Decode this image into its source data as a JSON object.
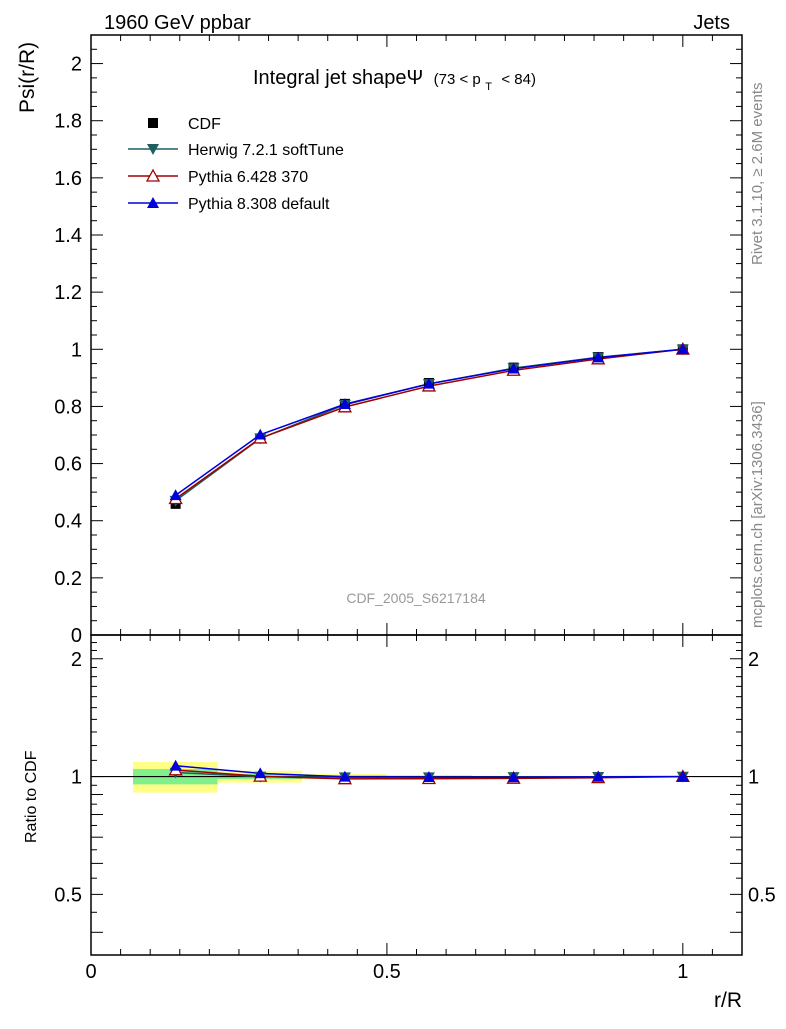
{
  "header": {
    "left": "1960 GeV ppbar",
    "right": "Jets"
  },
  "side_labels": {
    "rivet": "Rivet 3.1.10, ≥ 2.6M events",
    "mcplots": "mcplots.cern.ch [arXiv:1306.3436]"
  },
  "chart_data": {
    "type": "line",
    "title": "Integral jet shapeΨ",
    "title_suffix": "(73 < p",
    "title_sub": "T",
    "title_suffix2": "< 84)",
    "watermark": "CDF_2005_S6217184",
    "xlabel": "r/R",
    "ylabel": "Psi(r/R)",
    "ratio_ylabel": "Ratio to CDF",
    "xlim": [
      0,
      1.1
    ],
    "ylim": [
      0,
      2.1
    ],
    "ratio_ylim": [
      0.35,
      2.3
    ],
    "x_ticks": [
      {
        "v": 0,
        "label": "0"
      },
      {
        "v": 0.5,
        "label": "0.5"
      },
      {
        "v": 1,
        "label": "1"
      }
    ],
    "y_ticks": [
      {
        "v": 0,
        "label": "0"
      },
      {
        "v": 0.2,
        "label": "0.2"
      },
      {
        "v": 0.4,
        "label": "0.4"
      },
      {
        "v": 0.6,
        "label": "0.6"
      },
      {
        "v": 0.8,
        "label": "0.8"
      },
      {
        "v": 1,
        "label": "1"
      },
      {
        "v": 1.2,
        "label": "1.2"
      },
      {
        "v": 1.4,
        "label": "1.4"
      },
      {
        "v": 1.6,
        "label": "1.6"
      },
      {
        "v": 1.8,
        "label": "1.8"
      },
      {
        "v": 2,
        "label": "2"
      }
    ],
    "ratio_ticks": [
      {
        "v": 0.5,
        "label": "0.5"
      },
      {
        "v": 1,
        "label": "1"
      },
      {
        "v": 2,
        "label": "2"
      }
    ],
    "x": [
      0.143,
      0.286,
      0.429,
      0.571,
      0.714,
      0.857,
      1.0
    ],
    "bin_edges": [
      0.071,
      0.214,
      0.357,
      0.5,
      0.643,
      0.786,
      0.929,
      1.071
    ],
    "reference": {
      "name": "CDF",
      "values": [
        0.459,
        0.688,
        0.809,
        0.882,
        0.936,
        0.973,
        1.0
      ],
      "band_inner": [
        [
          0.955,
          1.045
        ],
        [
          0.985,
          1.015
        ],
        [
          0.992,
          1.008
        ],
        [
          0.995,
          1.005
        ],
        [
          0.997,
          1.003
        ],
        [
          0.998,
          1.002
        ],
        [
          0.999,
          1.001
        ]
      ],
      "band_outer": [
        [
          0.91,
          1.09
        ],
        [
          0.965,
          1.035
        ],
        [
          0.985,
          1.015
        ],
        [
          0.99,
          1.01
        ],
        [
          0.994,
          1.006
        ],
        [
          0.996,
          1.004
        ],
        [
          0.998,
          1.002
        ]
      ],
      "color": "#000000"
    },
    "series": [
      {
        "name": "Herwig 7.2.1 softTune",
        "values": [
          0.47,
          0.688,
          0.806,
          0.879,
          0.934,
          0.972,
          1.0
        ],
        "color": "#1f5f5f",
        "marker": "triangle-down-filled"
      },
      {
        "name": "Pythia 6.428 370",
        "values": [
          0.477,
          0.689,
          0.798,
          0.871,
          0.926,
          0.966,
          1.0
        ],
        "color": "#a00000",
        "marker": "triangle-up-open"
      },
      {
        "name": "Pythia 8.308 default",
        "values": [
          0.489,
          0.701,
          0.808,
          0.879,
          0.932,
          0.971,
          1.0
        ],
        "color": "#0000dd",
        "marker": "triangle-up-filled"
      }
    ],
    "band_colors": {
      "inner": "#7ff08a",
      "outer": "#ffff88"
    },
    "legend_position": "top-left",
    "grid": false
  }
}
